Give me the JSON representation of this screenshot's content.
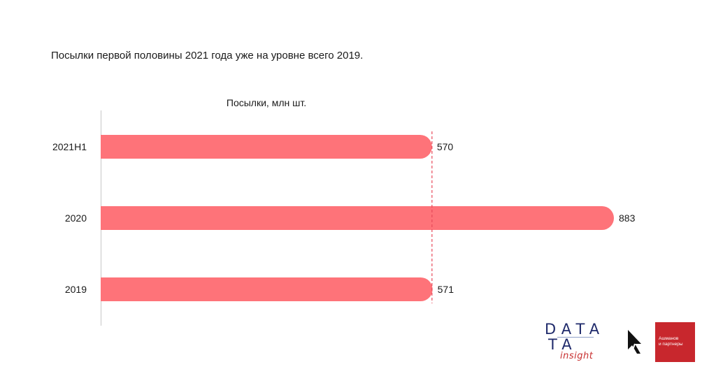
{
  "headline": "Посылки первой половины 2021 года уже на уровне всего 2019.",
  "chart_data": {
    "type": "bar",
    "orientation": "horizontal",
    "title": "Посылки, млн шт.",
    "categories": [
      "2021H1",
      "2020",
      "2019"
    ],
    "values": [
      570,
      883,
      571
    ],
    "value_labels": [
      "570",
      "883",
      "571"
    ],
    "xlim": [
      0,
      883
    ],
    "reference_line": {
      "value": 570,
      "style": "dashed"
    },
    "colors": {
      "bar": "#fe7379",
      "reference": "#e8495a",
      "axis": "#c8c8c8"
    }
  },
  "logos": {
    "data_insight": {
      "line1": "DATA",
      "line2": "TA",
      "line3": "insight"
    },
    "ashmanov": {
      "line1": "Ашманов",
      "line2": "и партнеры"
    }
  }
}
